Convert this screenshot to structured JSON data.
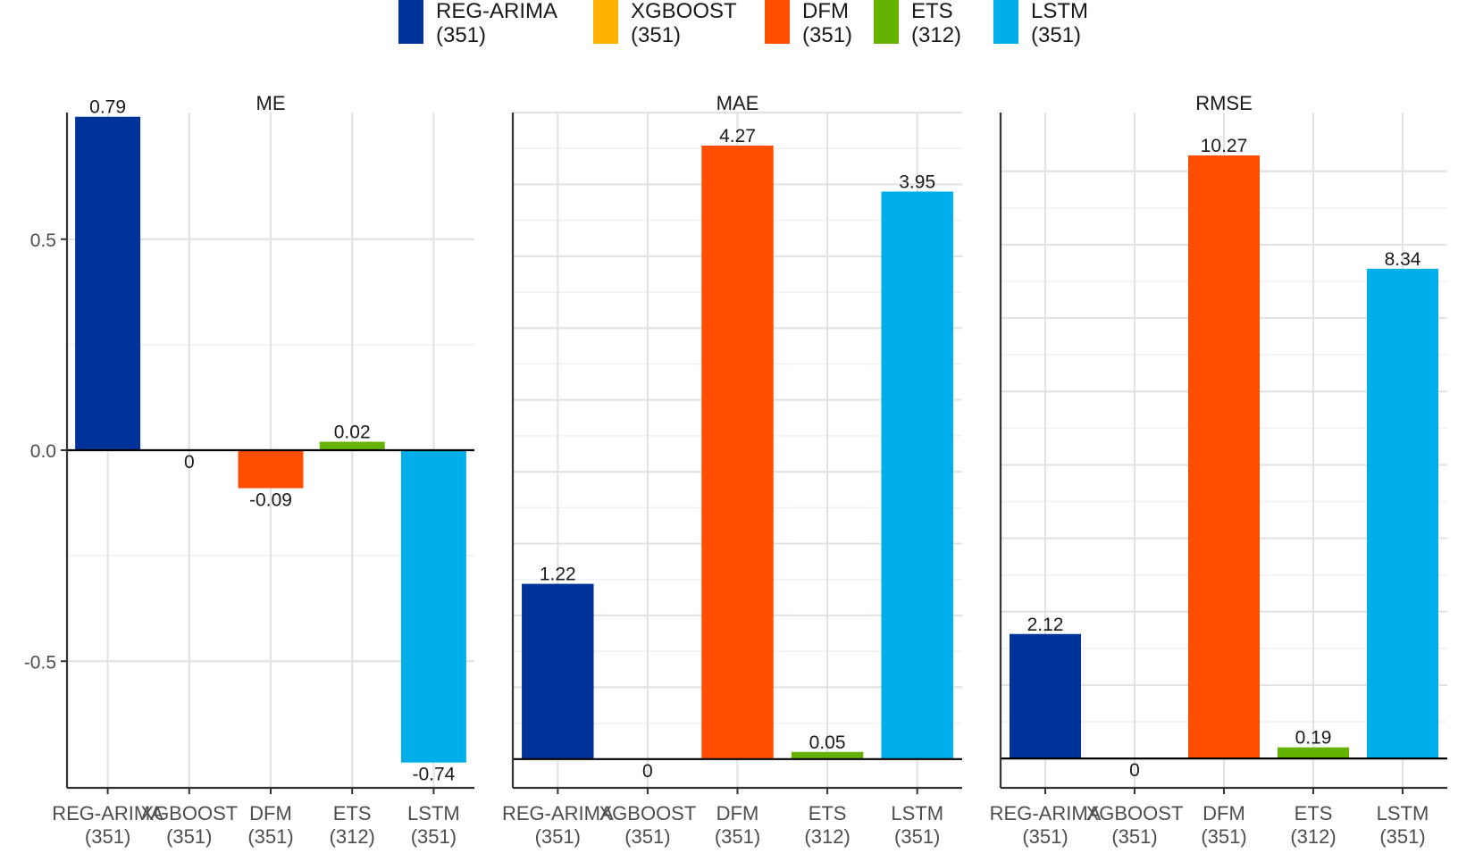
{
  "legend": {
    "position": "top",
    "items": [
      {
        "name": "REG-ARIMA",
        "count": "(351)",
        "color": "#003399"
      },
      {
        "name": "XGBOOST",
        "count": "(351)",
        "color": "#FFB300"
      },
      {
        "name": "DFM",
        "count": "(351)",
        "color": "#FF4E00"
      },
      {
        "name": "ETS",
        "count": "(312)",
        "color": "#66B200"
      },
      {
        "name": "LSTM",
        "count": "(351)",
        "color": "#00AEEA"
      }
    ]
  },
  "chart_data": [
    {
      "type": "bar",
      "title": "ME",
      "categories": [
        "REG-ARIMA",
        "XGBOOST",
        "DFM",
        "ETS",
        "LSTM"
      ],
      "category_counts": [
        "(351)",
        "(351)",
        "(351)",
        "(312)",
        "(351)"
      ],
      "values": [
        0.79,
        0,
        -0.09,
        0.02,
        -0.74
      ],
      "value_labels": [
        "0.79",
        "0",
        "-0.09",
        "0.02",
        "-0.74"
      ],
      "ylim": [
        -0.8,
        0.8
      ],
      "yticks": [
        -0.5,
        0.0,
        0.5
      ],
      "ytick_labels": [
        "-0.5",
        "0.0",
        "0.5"
      ],
      "show_y_tick_labels": true,
      "grid": true
    },
    {
      "type": "bar",
      "title": "MAE",
      "categories": [
        "REG-ARIMA",
        "XGBOOST",
        "DFM",
        "ETS",
        "LSTM"
      ],
      "category_counts": [
        "(351)",
        "(351)",
        "(351)",
        "(312)",
        "(351)"
      ],
      "values": [
        1.22,
        0,
        4.27,
        0.05,
        3.95
      ],
      "value_labels": [
        "1.22",
        "0",
        "4.27",
        "0.05",
        "3.95"
      ],
      "ylim": [
        -0.2,
        4.5
      ],
      "yticks": [
        0,
        0.5,
        1,
        1.5,
        2,
        2.5,
        3,
        3.5,
        4,
        4.5
      ],
      "show_y_tick_labels": false,
      "grid": true
    },
    {
      "type": "bar",
      "title": "RMSE",
      "categories": [
        "REG-ARIMA",
        "XGBOOST",
        "DFM",
        "ETS",
        "LSTM"
      ],
      "category_counts": [
        "(351)",
        "(351)",
        "(351)",
        "(312)",
        "(351)"
      ],
      "values": [
        2.12,
        0,
        10.27,
        0.19,
        8.34
      ],
      "value_labels": [
        "2.12",
        "0",
        "10.27",
        "0.19",
        "8.34"
      ],
      "ylim": [
        -0.5,
        11
      ],
      "yticks": [
        0,
        1.25,
        2.5,
        3.75,
        5,
        6.25,
        7.5,
        8.75,
        10
      ],
      "show_y_tick_labels": false,
      "grid": true
    }
  ]
}
